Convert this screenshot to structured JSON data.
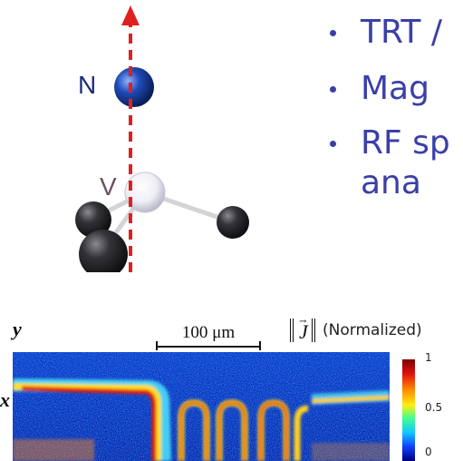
{
  "colors": {
    "bullet_text": "#3a3fa8",
    "axis_arrow": "#e02020",
    "nitrogen_atom": "#1b3d9a",
    "vacancy_atom": "#e8e8f2",
    "carbon_atom": "#2b2b2e",
    "label_n": "#1b2e7a",
    "label_v": "#6a5062"
  },
  "molecule": {
    "label_n": "N",
    "label_v": "V",
    "icons": [
      "red-dashed-axis-arrow",
      "nitrogen-atom",
      "vacancy-atom",
      "carbon-atom"
    ]
  },
  "bullets": [
    {
      "text": "TRT /"
    },
    {
      "text": "Mag"
    },
    {
      "text": "RF sp"
    },
    {
      "text": "ana"
    }
  ],
  "current_map": {
    "axis_y": "y",
    "axis_x": "x",
    "scale_bar_label": "100 μm",
    "norm_symbol": "J",
    "norm_label": "(Normalized)",
    "colorbar_ticks": [
      "1",
      "0.5",
      "0"
    ]
  }
}
